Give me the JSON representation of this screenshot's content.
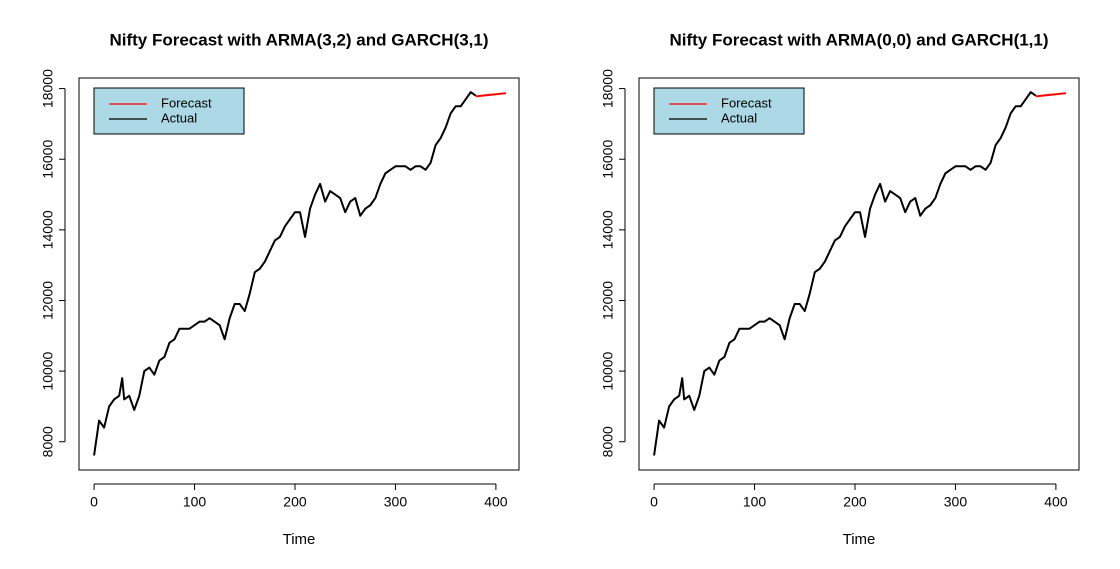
{
  "chart_data": [
    {
      "type": "line",
      "title": "Nifty Forecast with ARMA(3,2) and GARCH(3,1)",
      "x_label": "Time",
      "xlim": [
        -15,
        423
      ],
      "ylim": [
        7200,
        18300
      ],
      "xticks": [
        0,
        100,
        200,
        300,
        400
      ],
      "yticks": [
        8000,
        10000,
        12000,
        14000,
        16000,
        18000
      ],
      "legend": "topleft",
      "legend_fill": "#add8e6",
      "series": [
        {
          "name": "Forecast",
          "color": "#ff0000",
          "x": [
            380,
            390,
            400,
            410
          ],
          "values": [
            17780,
            17810,
            17840,
            17870
          ]
        },
        {
          "name": "Actual",
          "color": "#000000",
          "x": [
            0,
            5,
            10,
            15,
            20,
            25,
            28,
            30,
            35,
            40,
            45,
            50,
            55,
            60,
            65,
            70,
            75,
            80,
            85,
            90,
            95,
            100,
            105,
            110,
            115,
            120,
            125,
            130,
            135,
            140,
            145,
            150,
            155,
            160,
            165,
            170,
            175,
            180,
            185,
            190,
            195,
            200,
            205,
            210,
            215,
            220,
            225,
            230,
            235,
            240,
            245,
            250,
            255,
            260,
            265,
            270,
            275,
            280,
            285,
            290,
            295,
            300,
            305,
            310,
            315,
            320,
            325,
            330,
            335,
            340,
            345,
            350,
            355,
            360,
            365,
            370,
            375,
            380
          ],
          "values": [
            7610,
            8600,
            8400,
            9000,
            9200,
            9300,
            9800,
            9200,
            9300,
            8900,
            9300,
            10000,
            10100,
            9900,
            10300,
            10400,
            10800,
            10900,
            11200,
            11200,
            11200,
            11300,
            11400,
            11400,
            11500,
            11400,
            11300,
            10900,
            11500,
            11900,
            11900,
            11700,
            12200,
            12800,
            12900,
            13100,
            13400,
            13700,
            13800,
            14100,
            14300,
            14500,
            14500,
            13800,
            14600,
            15000,
            15300,
            14800,
            15100,
            15000,
            14900,
            14500,
            14800,
            14900,
            14400,
            14600,
            14700,
            14900,
            15300,
            15600,
            15700,
            15800,
            15800,
            15800,
            15700,
            15800,
            15800,
            15700,
            15900,
            16400,
            16600,
            16900,
            17300,
            17500,
            17500,
            17700,
            17900,
            17800
          ]
        }
      ]
    },
    {
      "type": "line",
      "title": "Nifty Forecast with ARMA(0,0) and GARCH(1,1)",
      "x_label": "Time",
      "xlim": [
        -15,
        423
      ],
      "ylim": [
        7200,
        18300
      ],
      "xticks": [
        0,
        100,
        200,
        300,
        400
      ],
      "yticks": [
        8000,
        10000,
        12000,
        14000,
        16000,
        18000
      ],
      "legend": "topleft",
      "legend_fill": "#add8e6",
      "series": [
        {
          "name": "Forecast",
          "color": "#ff0000",
          "x": [
            380,
            390,
            400,
            410
          ],
          "values": [
            17780,
            17810,
            17840,
            17870
          ]
        },
        {
          "name": "Actual",
          "color": "#000000",
          "x": [
            0,
            5,
            10,
            15,
            20,
            25,
            28,
            30,
            35,
            40,
            45,
            50,
            55,
            60,
            65,
            70,
            75,
            80,
            85,
            90,
            95,
            100,
            105,
            110,
            115,
            120,
            125,
            130,
            135,
            140,
            145,
            150,
            155,
            160,
            165,
            170,
            175,
            180,
            185,
            190,
            195,
            200,
            205,
            210,
            215,
            220,
            225,
            230,
            235,
            240,
            245,
            250,
            255,
            260,
            265,
            270,
            275,
            280,
            285,
            290,
            295,
            300,
            305,
            310,
            315,
            320,
            325,
            330,
            335,
            340,
            345,
            350,
            355,
            360,
            365,
            370,
            375,
            380
          ],
          "values": [
            7610,
            8600,
            8400,
            9000,
            9200,
            9300,
            9800,
            9200,
            9300,
            8900,
            9300,
            10000,
            10100,
            9900,
            10300,
            10400,
            10800,
            10900,
            11200,
            11200,
            11200,
            11300,
            11400,
            11400,
            11500,
            11400,
            11300,
            10900,
            11500,
            11900,
            11900,
            11700,
            12200,
            12800,
            12900,
            13100,
            13400,
            13700,
            13800,
            14100,
            14300,
            14500,
            14500,
            13800,
            14600,
            15000,
            15300,
            14800,
            15100,
            15000,
            14900,
            14500,
            14800,
            14900,
            14400,
            14600,
            14700,
            14900,
            15300,
            15600,
            15700,
            15800,
            15800,
            15800,
            15700,
            15800,
            15800,
            15700,
            15900,
            16400,
            16600,
            16900,
            17300,
            17500,
            17500,
            17700,
            17900,
            17800
          ]
        }
      ]
    }
  ]
}
